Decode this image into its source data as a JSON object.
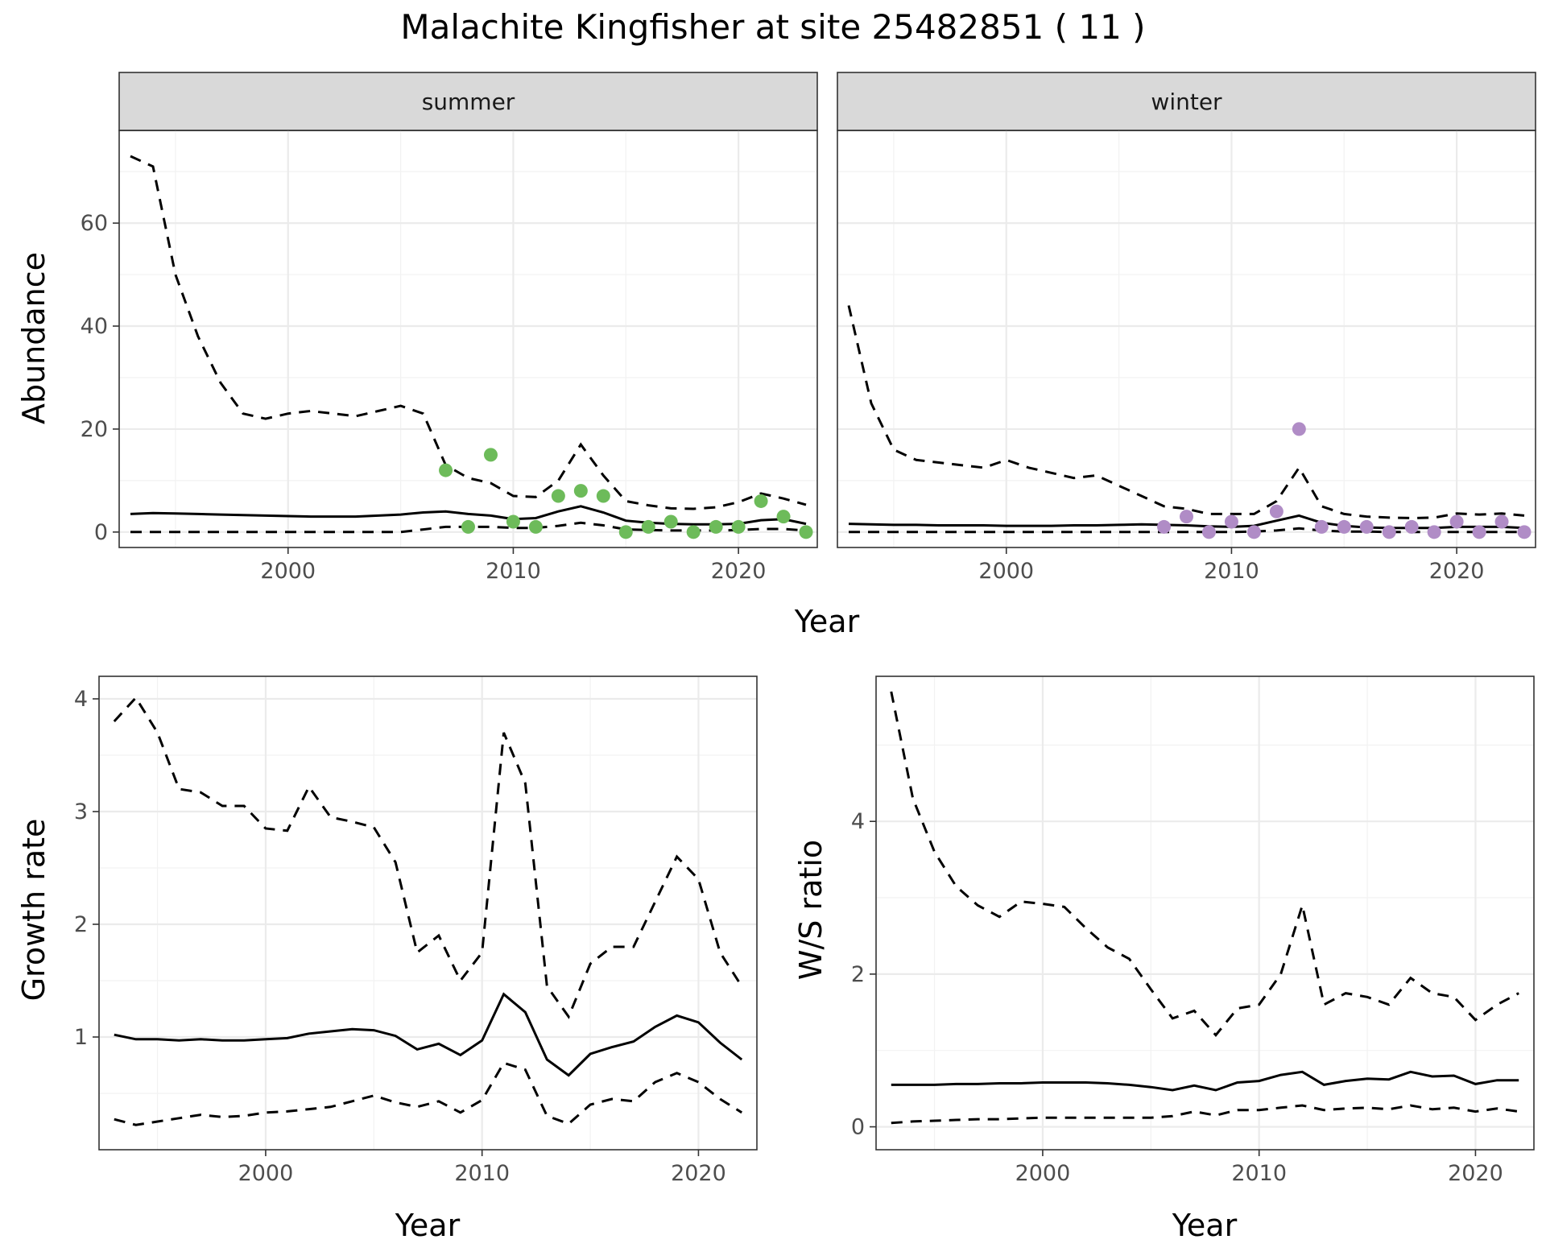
{
  "title": "Malachite Kingfisher at site 25482851 ( 11 )",
  "colors": {
    "summer_points": "#6dbb5a",
    "winter_points": "#b08cc6",
    "lines": "#000000"
  },
  "chart_data": [
    {
      "type": "line",
      "facet": "summer",
      "xlabel": "Year",
      "ylabel": "Abundance",
      "xlim": [
        1992.5,
        2023.5
      ],
      "ylim": [
        -3,
        78
      ],
      "xticks": [
        2000,
        2010,
        2020
      ],
      "yticks": [
        0,
        20,
        40,
        60
      ],
      "x": [
        1993,
        1994,
        1995,
        1996,
        1997,
        1998,
        1999,
        2000,
        2001,
        2002,
        2003,
        2004,
        2005,
        2006,
        2007,
        2008,
        2009,
        2010,
        2011,
        2012,
        2013,
        2014,
        2015,
        2016,
        2017,
        2018,
        2019,
        2020,
        2021,
        2022,
        2023
      ],
      "series": [
        {
          "role": "mean",
          "values": [
            3.5,
            3.7,
            3.6,
            3.5,
            3.4,
            3.3,
            3.2,
            3.1,
            3.0,
            3.0,
            3.0,
            3.2,
            3.4,
            3.8,
            4.0,
            3.5,
            3.2,
            2.5,
            2.7,
            4.0,
            5.0,
            3.8,
            2.2,
            1.8,
            1.6,
            1.5,
            1.5,
            1.6,
            2.3,
            2.5,
            1.6
          ]
        },
        {
          "role": "upper",
          "values": [
            73,
            71,
            50,
            38,
            29,
            23,
            22,
            23,
            23.5,
            23,
            22.5,
            23.5,
            24.5,
            23,
            13,
            10.5,
            9.5,
            7,
            6.8,
            10,
            17,
            11,
            6,
            5.2,
            4.6,
            4.5,
            4.8,
            5.8,
            7.5,
            6.5,
            5.3
          ]
        },
        {
          "role": "lower",
          "values": [
            0,
            0,
            0,
            0,
            0,
            0,
            0,
            0,
            0,
            0,
            0,
            0,
            0,
            0.5,
            1.0,
            1.0,
            1.0,
            0.8,
            0.8,
            1.2,
            1.8,
            1.3,
            0.5,
            0.4,
            0.3,
            0.3,
            0.3,
            0.4,
            0.6,
            0.6,
            0.3
          ]
        }
      ],
      "points": [
        [
          2007,
          12
        ],
        [
          2008,
          1
        ],
        [
          2009,
          15
        ],
        [
          2010,
          2
        ],
        [
          2011,
          1
        ],
        [
          2012,
          7
        ],
        [
          2013,
          8
        ],
        [
          2014,
          7
        ],
        [
          2015,
          0
        ],
        [
          2016,
          1
        ],
        [
          2017,
          2
        ],
        [
          2018,
          0
        ],
        [
          2019,
          1
        ],
        [
          2020,
          1
        ],
        [
          2021,
          6
        ],
        [
          2022,
          3
        ],
        [
          2023,
          0
        ]
      ]
    },
    {
      "type": "line",
      "facet": "winter",
      "xlabel": "Year",
      "ylabel": "Abundance",
      "xlim": [
        1992.5,
        2023.5
      ],
      "ylim": [
        -3,
        78
      ],
      "xticks": [
        2000,
        2010,
        2020
      ],
      "yticks": [
        0,
        20,
        40,
        60
      ],
      "x": [
        1993,
        1994,
        1995,
        1996,
        1997,
        1998,
        1999,
        2000,
        2001,
        2002,
        2003,
        2004,
        2005,
        2006,
        2007,
        2008,
        2009,
        2010,
        2011,
        2012,
        2013,
        2014,
        2015,
        2016,
        2017,
        2018,
        2019,
        2020,
        2021,
        2022,
        2023
      ],
      "series": [
        {
          "role": "mean",
          "values": [
            1.6,
            1.5,
            1.4,
            1.4,
            1.3,
            1.3,
            1.3,
            1.2,
            1.2,
            1.2,
            1.3,
            1.3,
            1.4,
            1.5,
            1.4,
            1.3,
            1.1,
            1.0,
            1.2,
            2.2,
            3.2,
            1.8,
            1.2,
            0.9,
            0.8,
            0.8,
            0.8,
            1.0,
            1.0,
            1.0,
            0.8
          ]
        },
        {
          "role": "upper",
          "values": [
            44,
            25,
            16,
            14,
            13.5,
            13,
            12.5,
            14,
            12.5,
            11.5,
            10.5,
            11,
            9,
            7,
            5,
            4.5,
            3.5,
            3.5,
            3.5,
            6,
            12.5,
            5,
            3.5,
            3,
            2.8,
            2.7,
            2.8,
            3.6,
            3.4,
            3.6,
            3.2
          ]
        },
        {
          "role": "lower",
          "values": [
            0,
            0,
            0,
            0,
            0,
            0,
            0,
            0,
            0,
            0,
            0,
            0,
            0,
            0,
            0,
            0,
            0,
            0,
            0.1,
            0.3,
            0.7,
            0.3,
            0.1,
            0.1,
            0,
            0,
            0,
            0,
            0,
            0,
            0
          ]
        }
      ],
      "points": [
        [
          2007,
          1
        ],
        [
          2008,
          3
        ],
        [
          2009,
          0
        ],
        [
          2010,
          2
        ],
        [
          2011,
          0
        ],
        [
          2012,
          4
        ],
        [
          2013,
          20
        ],
        [
          2014,
          1
        ],
        [
          2015,
          1
        ],
        [
          2016,
          1
        ],
        [
          2017,
          0
        ],
        [
          2018,
          1
        ],
        [
          2019,
          0
        ],
        [
          2020,
          2
        ],
        [
          2021,
          0
        ],
        [
          2022,
          2
        ],
        [
          2023,
          0
        ]
      ]
    },
    {
      "type": "line",
      "facet": "",
      "xlabel": "Year",
      "ylabel": "Growth rate",
      "xlim": [
        1992.3,
        2022.7
      ],
      "ylim": [
        0.0,
        4.2
      ],
      "xticks": [
        2000,
        2010,
        2020
      ],
      "yticks": [
        1,
        2,
        3,
        4
      ],
      "x": [
        1993,
        1994,
        1995,
        1996,
        1997,
        1998,
        1999,
        2000,
        2001,
        2002,
        2003,
        2004,
        2005,
        2006,
        2007,
        2008,
        2009,
        2010,
        2011,
        2012,
        2013,
        2014,
        2015,
        2016,
        2017,
        2018,
        2019,
        2020,
        2021,
        2022
      ],
      "series": [
        {
          "role": "mean",
          "values": [
            1.02,
            0.98,
            0.98,
            0.97,
            0.98,
            0.97,
            0.97,
            0.98,
            0.99,
            1.03,
            1.05,
            1.07,
            1.06,
            1.01,
            0.89,
            0.94,
            0.84,
            0.97,
            1.38,
            1.22,
            0.8,
            0.66,
            0.85,
            0.91,
            0.96,
            1.09,
            1.19,
            1.13,
            0.95,
            0.8
          ]
        },
        {
          "role": "upper",
          "values": [
            3.8,
            4.01,
            3.7,
            3.2,
            3.17,
            3.05,
            3.05,
            2.85,
            2.83,
            3.22,
            2.95,
            2.91,
            2.86,
            2.55,
            1.75,
            1.9,
            1.5,
            1.75,
            3.7,
            3.25,
            1.45,
            1.18,
            1.65,
            1.8,
            1.8,
            2.2,
            2.6,
            2.4,
            1.75,
            1.45
          ]
        },
        {
          "role": "lower",
          "values": [
            0.27,
            0.22,
            0.25,
            0.28,
            0.31,
            0.29,
            0.3,
            0.33,
            0.34,
            0.36,
            0.38,
            0.43,
            0.48,
            0.42,
            0.38,
            0.43,
            0.33,
            0.44,
            0.77,
            0.71,
            0.3,
            0.23,
            0.4,
            0.45,
            0.43,
            0.6,
            0.68,
            0.6,
            0.45,
            0.33
          ]
        }
      ]
    },
    {
      "type": "line",
      "facet": "",
      "xlabel": "Year",
      "ylabel": "W/S ratio",
      "xlim": [
        1992.3,
        2022.7
      ],
      "ylim": [
        -0.3,
        5.9
      ],
      "xticks": [
        2000,
        2010,
        2020
      ],
      "yticks": [
        0,
        2,
        4
      ],
      "x": [
        1993,
        1994,
        1995,
        1996,
        1997,
        1998,
        1999,
        2000,
        2001,
        2002,
        2003,
        2004,
        2005,
        2006,
        2007,
        2008,
        2009,
        2010,
        2011,
        2012,
        2013,
        2014,
        2015,
        2016,
        2017,
        2018,
        2019,
        2020,
        2021,
        2022
      ],
      "series": [
        {
          "role": "mean",
          "values": [
            0.55,
            0.55,
            0.55,
            0.56,
            0.56,
            0.57,
            0.57,
            0.58,
            0.58,
            0.58,
            0.57,
            0.55,
            0.52,
            0.48,
            0.54,
            0.48,
            0.58,
            0.6,
            0.68,
            0.72,
            0.55,
            0.6,
            0.63,
            0.62,
            0.72,
            0.66,
            0.67,
            0.56,
            0.61,
            0.61
          ]
        },
        {
          "role": "upper",
          "values": [
            5.7,
            4.3,
            3.6,
            3.15,
            2.9,
            2.75,
            2.95,
            2.92,
            2.88,
            2.6,
            2.35,
            2.2,
            1.8,
            1.42,
            1.52,
            1.2,
            1.55,
            1.6,
            2.0,
            2.9,
            1.6,
            1.75,
            1.7,
            1.6,
            1.95,
            1.75,
            1.7,
            1.4,
            1.6,
            1.75
          ]
        },
        {
          "role": "lower",
          "values": [
            0.05,
            0.07,
            0.08,
            0.09,
            0.1,
            0.1,
            0.11,
            0.12,
            0.12,
            0.12,
            0.12,
            0.12,
            0.12,
            0.14,
            0.2,
            0.15,
            0.22,
            0.22,
            0.25,
            0.28,
            0.22,
            0.24,
            0.25,
            0.23,
            0.28,
            0.23,
            0.25,
            0.2,
            0.24,
            0.2
          ]
        }
      ]
    }
  ]
}
